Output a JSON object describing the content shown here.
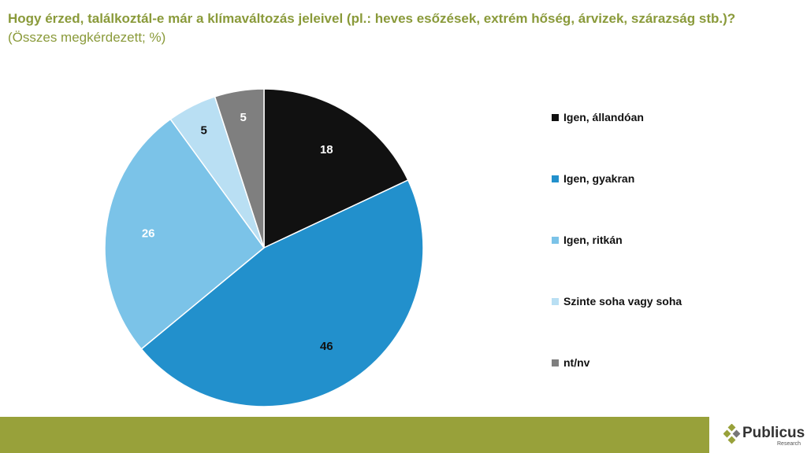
{
  "title": {
    "question": "Hogy érzed, találkoztál-e már a klímaváltozás jeleivel (pl.: heves esőzések, extrém hőség, árvizek, szárazság stb.)?",
    "subtitle": "(Összes megkérdezett; %)"
  },
  "chart_data": {
    "type": "pie",
    "categories": [
      "Igen, állandóan",
      "Igen, gyakran",
      "Igen, ritkán",
      "Szinte soha vagy soha",
      "nt/nv"
    ],
    "values": [
      18,
      46,
      26,
      5,
      5
    ],
    "colors": [
      "#111111",
      "#2290cc",
      "#7bc3e8",
      "#b9dff3",
      "#7f7f7f"
    ],
    "label_colors": [
      "#ffffff",
      "#111111",
      "#ffffff",
      "#111111",
      "#ffffff"
    ],
    "start_angle": "12 o'clock",
    "direction": "clockwise",
    "legend_position": "right"
  },
  "footer": {
    "band_color": "#98a13a",
    "logo_text": "Publicus",
    "logo_subtext": "Research",
    "logo_icon": "diamond-cluster-icon"
  }
}
